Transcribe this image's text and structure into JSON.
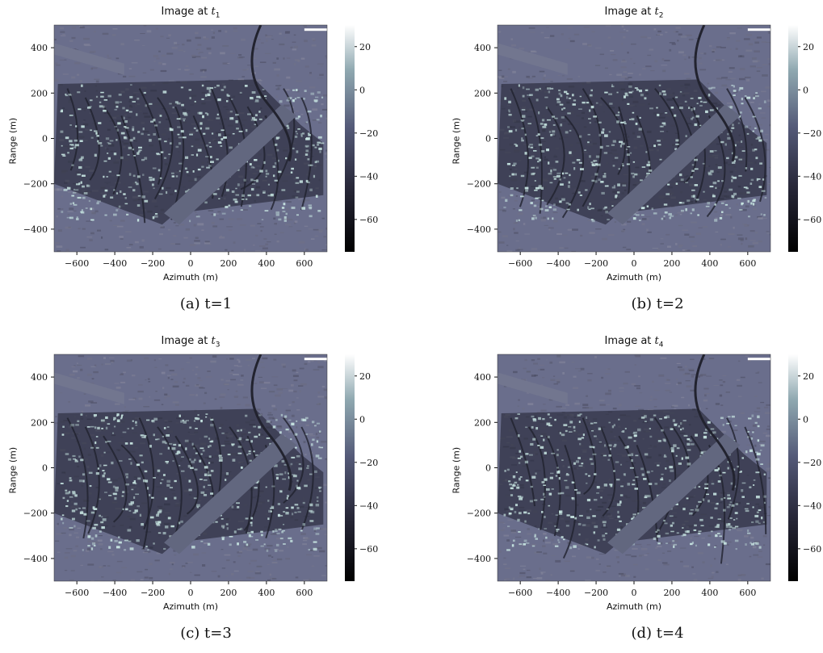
{
  "panels": [
    {
      "title_prefix": "Image at ",
      "title_var": "t",
      "title_sub": "1",
      "xlabel": "Azimuth (m)",
      "ylabel": "Range (m)",
      "caption": "(a) t=1",
      "seed": 11
    },
    {
      "title_prefix": "Image at ",
      "title_var": "t",
      "title_sub": "2",
      "xlabel": "Azimuth (m)",
      "ylabel": "Range (m)",
      "caption": "(b) t=2",
      "seed": 23
    },
    {
      "title_prefix": "Image at ",
      "title_var": "t",
      "title_sub": "3",
      "xlabel": "Azimuth (m)",
      "ylabel": "Range (m)",
      "caption": "(c) t=3",
      "seed": 37
    },
    {
      "title_prefix": "Image at ",
      "title_var": "t",
      "title_sub": "4",
      "xlabel": "Azimuth (m)",
      "ylabel": "Range (m)",
      "caption": "(d) t=4",
      "seed": 53
    }
  ],
  "chart_data": [
    {
      "type": "heatmap",
      "title": "Image at t1",
      "xlabel": "Azimuth (m)",
      "ylabel": "Range (m)",
      "xlim": [
        -720,
        720
      ],
      "ylim": [
        -500,
        500
      ],
      "xticks": [
        -600,
        -400,
        -200,
        0,
        200,
        400,
        600
      ],
      "yticks": [
        -400,
        -200,
        0,
        200,
        400
      ],
      "colorbar": {
        "range": [
          -75,
          30
        ],
        "ticks": [
          20,
          0,
          -20,
          -40,
          -60
        ]
      },
      "colormap": "bone"
    },
    {
      "type": "heatmap",
      "title": "Image at t2",
      "xlabel": "Azimuth (m)",
      "ylabel": "Range (m)",
      "xlim": [
        -720,
        720
      ],
      "ylim": [
        -500,
        500
      ],
      "xticks": [
        -600,
        -400,
        -200,
        0,
        200,
        400,
        600
      ],
      "yticks": [
        -400,
        -200,
        0,
        200,
        400
      ],
      "colorbar": {
        "range": [
          -75,
          30
        ],
        "ticks": [
          20,
          0,
          -20,
          -40,
          -60
        ]
      },
      "colormap": "bone"
    },
    {
      "type": "heatmap",
      "title": "Image at t3",
      "xlabel": "Azimuth (m)",
      "ylabel": "Range (m)",
      "xlim": [
        -720,
        720
      ],
      "ylim": [
        -500,
        500
      ],
      "xticks": [
        -600,
        -400,
        -200,
        0,
        200,
        400,
        600
      ],
      "yticks": [
        -400,
        -200,
        0,
        200,
        400
      ],
      "colorbar": {
        "range": [
          -75,
          30
        ],
        "ticks": [
          20,
          0,
          -20,
          -40,
          -60
        ]
      },
      "colormap": "bone"
    },
    {
      "type": "heatmap",
      "title": "Image at t4",
      "xlabel": "Azimuth (m)",
      "ylabel": "Range (m)",
      "xlim": [
        -720,
        720
      ],
      "ylim": [
        -500,
        500
      ],
      "xticks": [
        -600,
        -400,
        -200,
        0,
        200,
        400,
        600
      ],
      "yticks": [
        -400,
        -200,
        0,
        200,
        400
      ],
      "colorbar": {
        "range": [
          -75,
          30
        ],
        "ticks": [
          20,
          0,
          -20,
          -40,
          -60
        ]
      },
      "colormap": "bone"
    }
  ],
  "colors": {
    "bright": "#c8e6e2",
    "mid": "#5c6080",
    "dark": "#1c1e2c",
    "field": "#6a6e8c"
  }
}
